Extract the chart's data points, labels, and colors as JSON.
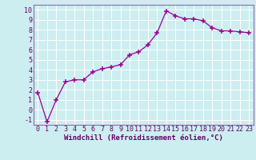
{
  "x": [
    0,
    1,
    2,
    3,
    4,
    5,
    6,
    7,
    8,
    9,
    10,
    11,
    12,
    13,
    14,
    15,
    16,
    17,
    18,
    19,
    20,
    21,
    22,
    23
  ],
  "y": [
    1.7,
    -1.2,
    1.0,
    2.8,
    3.0,
    3.0,
    3.8,
    4.1,
    4.3,
    4.5,
    5.5,
    5.8,
    6.5,
    7.7,
    9.9,
    9.4,
    9.1,
    9.1,
    8.9,
    8.2,
    7.9,
    7.9,
    7.8,
    7.7
  ],
  "xlabel": "Windchill (Refroidissement éolien,°C)",
  "ylim": [
    -1.5,
    10.5
  ],
  "xlim": [
    -0.5,
    23.5
  ],
  "yticks": [
    -1,
    0,
    1,
    2,
    3,
    4,
    5,
    6,
    7,
    8,
    9,
    10
  ],
  "xticks": [
    0,
    1,
    2,
    3,
    4,
    5,
    6,
    7,
    8,
    9,
    10,
    11,
    12,
    13,
    14,
    15,
    16,
    17,
    18,
    19,
    20,
    21,
    22,
    23
  ],
  "line_color": "#990099",
  "marker": "+",
  "marker_size": 4,
  "bg_color": "#cceef0",
  "grid_color": "#ffffff",
  "tick_label_color": "#660066",
  "xlabel_color": "#660066",
  "xlabel_fontsize": 6.5,
  "tick_fontsize": 6.0,
  "border_color": "#9966aa"
}
